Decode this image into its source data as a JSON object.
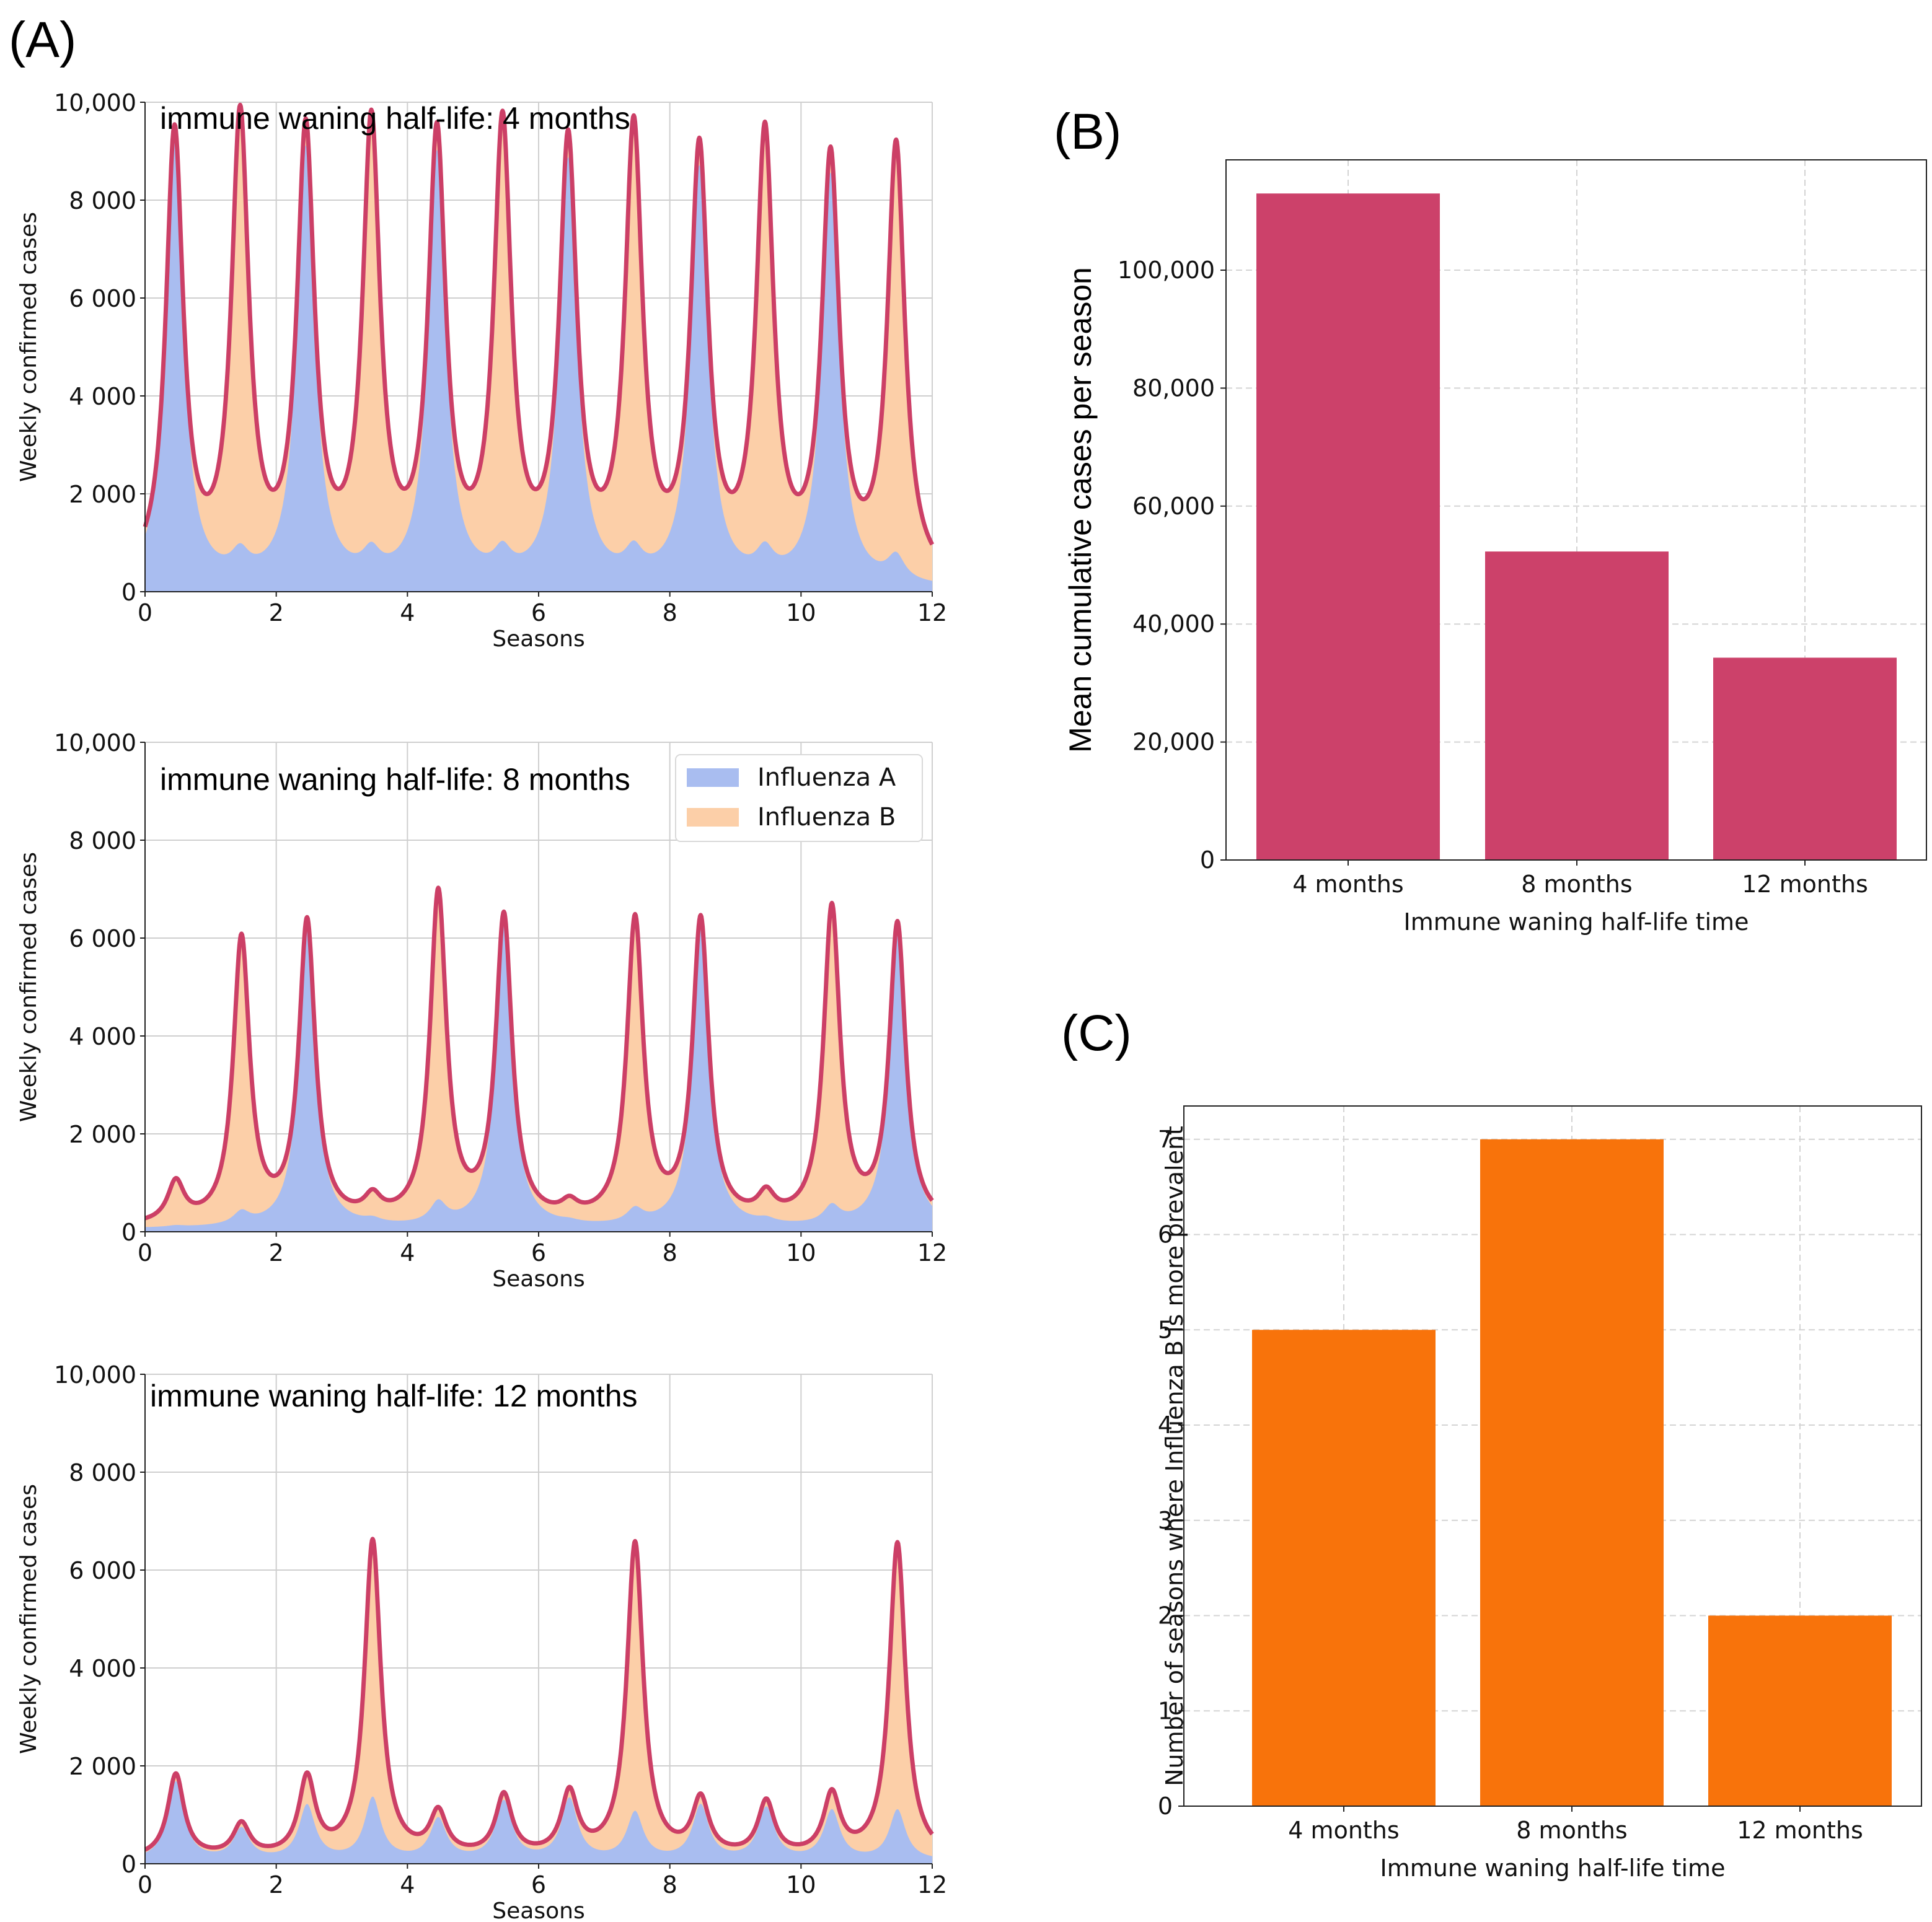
{
  "colors": {
    "influenza_a": "#a9bdf0",
    "influenza_b": "#fccfa8",
    "total_line": "#cc3f66",
    "bar_b": "#cc416a",
    "bar_c": "#f8730b"
  },
  "chart_data": [
    {
      "id": "A1",
      "panel_label": "(A)",
      "type": "area",
      "annotation": "immune waning half-life: 4 months",
      "xlabel": "Seasons",
      "ylabel": "Weekly confirmed cases",
      "xlim": [
        0,
        12
      ],
      "ylim": [
        0,
        10000
      ],
      "xticks": [
        "0",
        "2",
        "4",
        "6",
        "8",
        "10",
        "12"
      ],
      "yticks": [
        "0",
        "2 000",
        "4 000",
        "6 000",
        "8 000",
        "10,000"
      ],
      "peak_center_offset": 0.45,
      "peak_width_seasons": 0.16,
      "series": [
        {
          "name": "Influenza A",
          "peak_values": [
            9050,
            440,
            8900,
            450,
            8800,
            470,
            8650,
            490,
            8500,
            500,
            8400,
            500
          ]
        },
        {
          "name": "Influenza B",
          "peak_values": [
            40,
            8830,
            30,
            8650,
            30,
            8600,
            30,
            8500,
            30,
            8400,
            30,
            8300
          ]
        }
      ]
    },
    {
      "id": "A2",
      "type": "area",
      "annotation": "immune waning half-life: 8 months",
      "xlabel": "Seasons",
      "ylabel": "Weekly confirmed cases",
      "xlim": [
        0,
        12
      ],
      "ylim": [
        0,
        10000
      ],
      "xticks": [
        "0",
        "2",
        "4",
        "6",
        "8",
        "10",
        "12"
      ],
      "yticks": [
        "0",
        "2 000",
        "4 000",
        "6 000",
        "8 000",
        "10,000"
      ],
      "legend": {
        "position": "top-right",
        "entries": [
          "Influenza A",
          "Influenza B"
        ]
      },
      "peak_center_offset": 0.47,
      "peak_width_seasons": 0.15,
      "series": [
        {
          "name": "Influenza A",
          "peak_values": [
            30,
            250,
            6100,
            80,
            420,
            6180,
            40,
            280,
            6120,
            80,
            350,
            6050
          ]
        },
        {
          "name": "Influenza B",
          "peak_values": [
            780,
            5550,
            20,
            320,
            6280,
            20,
            220,
            5880,
            20,
            380,
            6060,
            20
          ]
        }
      ]
    },
    {
      "id": "A3",
      "type": "area",
      "annotation": "immune waning half-life: 12 months",
      "xlabel": "Seasons",
      "ylabel": "Weekly confirmed cases",
      "xlim": [
        0,
        12
      ],
      "ylim": [
        0,
        10000
      ],
      "xticks": [
        "0",
        "2",
        "4",
        "6",
        "8",
        "10",
        "12"
      ],
      "yticks": [
        "0",
        "2 000",
        "4 000",
        "6 000",
        "8 000",
        "10,000"
      ],
      "peak_center_offset": 0.47,
      "peak_width_seasons": 0.15,
      "series": [
        {
          "name": "Influenza A",
          "peak_values": [
            1600,
            620,
            1100,
            1250,
            820,
            1180,
            1230,
            950,
            1100,
            1050,
            1000,
            1020
          ]
        },
        {
          "name": "Influenza B",
          "peak_values": [
            100,
            30,
            480,
            5200,
            30,
            50,
            30,
            5450,
            30,
            50,
            230,
            5400
          ]
        }
      ]
    },
    {
      "id": "B",
      "panel_label": "(B)",
      "type": "bar",
      "categories": [
        "4 months",
        "8 months",
        "12 months"
      ],
      "values": [
        113000,
        52300,
        34300
      ],
      "xlabel": "Immune waning half-life time",
      "ylabel": "Mean cumulative cases per season",
      "ylim": [
        0,
        118700
      ],
      "yticks": [
        "0",
        "20,000",
        "40,000",
        "60,000",
        "80,000",
        "100,000"
      ],
      "ytick_values": [
        0,
        20000,
        40000,
        60000,
        80000,
        100000
      ],
      "grid": true
    },
    {
      "id": "C",
      "panel_label": "(C)",
      "type": "bar",
      "categories": [
        "4 months",
        "8 months",
        "12 months"
      ],
      "values": [
        5,
        7,
        2
      ],
      "xlabel": "Immune waning half-life time",
      "ylabel": "Number of seasons where Influenza B is more prevalent",
      "ylim": [
        0,
        7.35
      ],
      "yticks": [
        "0",
        "1",
        "2",
        "3",
        "4",
        "5",
        "6",
        "7"
      ],
      "ytick_values": [
        0,
        1,
        2,
        3,
        4,
        5,
        6,
        7
      ],
      "grid": true
    }
  ]
}
